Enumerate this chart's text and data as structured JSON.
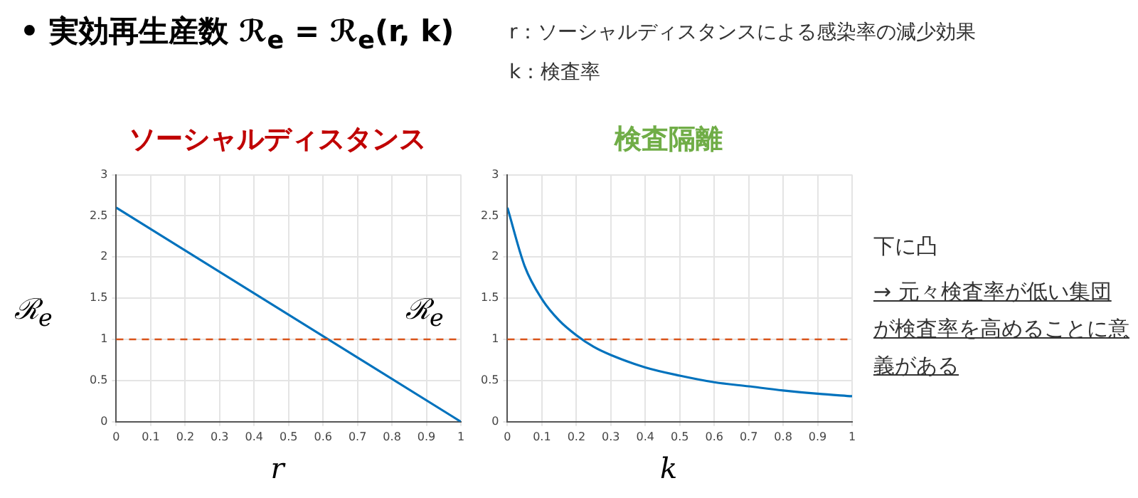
{
  "chart_data": [
    {
      "type": "line",
      "title": "ソーシャルディスタンス",
      "xlabel": "r",
      "ylabel": "ℛ$_{e}$",
      "x": [
        0,
        1
      ],
      "series": [
        {
          "color": "#0072bd",
          "values": [
            2.6,
            0
          ]
        }
      ],
      "xlim": [
        0,
        1
      ],
      "xticks": [
        0,
        0.1,
        0.2,
        0.3,
        0.4,
        0.5,
        0.6,
        0.7,
        0.8,
        0.9,
        1
      ],
      "ylim": [
        0,
        3
      ],
      "yticks": [
        0,
        0.5,
        1,
        1.5,
        2,
        2.5,
        3
      ],
      "grid": true,
      "legend": false,
      "ref_lines": [
        {
          "axis": "y",
          "value": 1,
          "color": "#d95319",
          "line_style": "dashed"
        }
      ],
      "annotations": [
        "• 実効再生産数  ℛ$_{e}$ = ℛ$_{e}$(r, k)",
        "r：ソーシャルディスタンスによる感染率の減少効果",
        "k：検査率"
      ]
    },
    {
      "type": "line",
      "title": "検査隔離",
      "xlabel": "k",
      "ylabel": "ℛ$_{e}$",
      "x": [
        0,
        0.05,
        0.1,
        0.15,
        0.2,
        0.25,
        0.3,
        0.4,
        0.5,
        0.6,
        0.7,
        0.8,
        0.9,
        1
      ],
      "series": [
        {
          "color": "#0072bd",
          "values": [
            2.6,
            1.89,
            1.49,
            1.23,
            1.05,
            0.91,
            0.81,
            0.66,
            0.56,
            0.48,
            0.43,
            0.38,
            0.34,
            0.31
          ]
        }
      ],
      "xlim": [
        0,
        1
      ],
      "xticks": [
        0,
        0.1,
        0.2,
        0.3,
        0.4,
        0.5,
        0.6,
        0.7,
        0.8,
        0.9,
        1
      ],
      "ylim": [
        0,
        3
      ],
      "yticks": [
        0,
        0.5,
        1,
        1.5,
        2,
        2.5,
        3
      ],
      "grid": true,
      "legend": false,
      "ref_lines": [
        {
          "axis": "y",
          "value": 1,
          "color": "#d95319",
          "line_style": "dashed"
        }
      ],
      "annotations": [
        "下に凸",
        "→ 元々検査率が低い集団が検査率を高めることに意義がある"
      ]
    }
  ]
}
